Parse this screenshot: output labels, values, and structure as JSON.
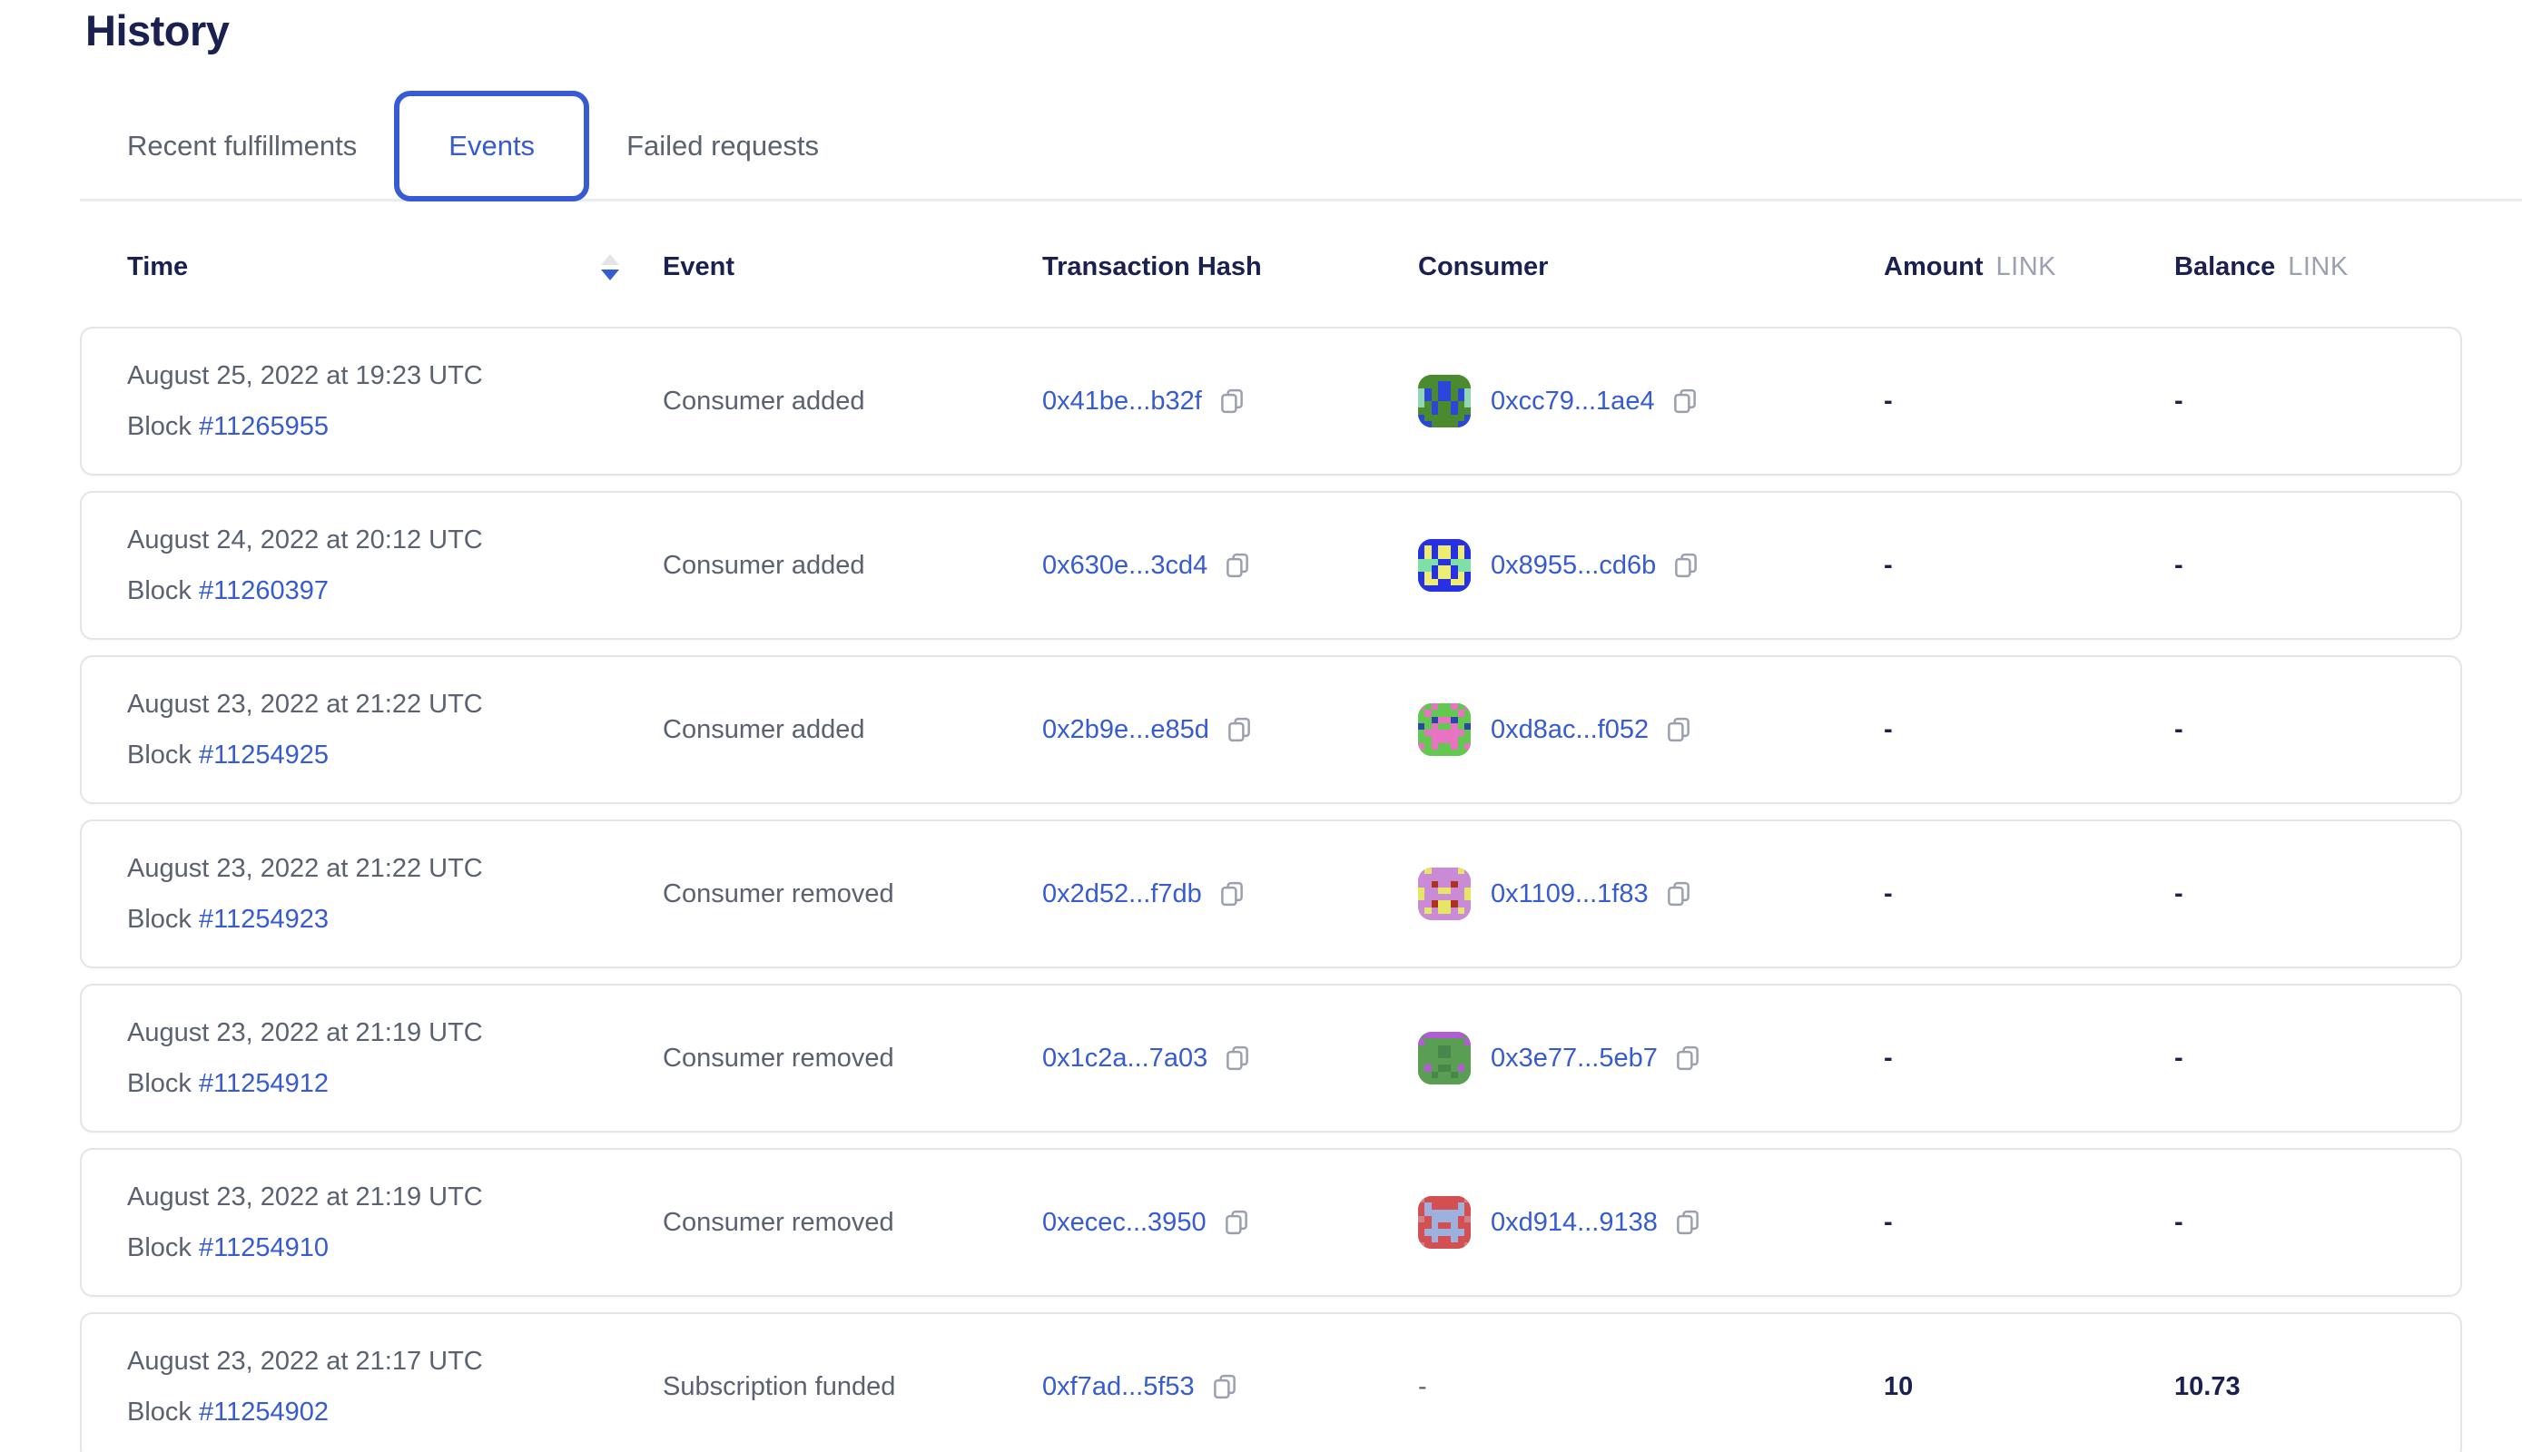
{
  "page": {
    "title": "History"
  },
  "tabs": [
    {
      "label": "Recent fulfillments",
      "active": false
    },
    {
      "label": "Events",
      "active": true
    },
    {
      "label": "Failed requests",
      "active": false
    }
  ],
  "table": {
    "columns": {
      "time": "Time",
      "event": "Event",
      "tx": "Transaction Hash",
      "consumer": "Consumer",
      "amount": "Amount",
      "balance": "Balance"
    },
    "unit": "LINK",
    "sort": {
      "column": "Time",
      "direction": "descending"
    },
    "rows": [
      {
        "date": "August 25, 2022 at 19:23 UTC",
        "block_label": "Block",
        "block": "#11265955",
        "event": "Consumer added",
        "tx": "0x41be...b32f",
        "consumer": "0xcc79...1ae4",
        "amount": "-",
        "balance": "-",
        "icon": {
          "colors": [
            "#4C8A2F",
            "#2B46D9",
            "#8FD8B1"
          ],
          "pattern": [
            "00000000",
            "00011000",
            "21011012",
            "21011012",
            "20100102",
            "00100100",
            "10000001",
            "11000011"
          ]
        }
      },
      {
        "date": "August 24, 2022 at 20:12 UTC",
        "block_label": "Block",
        "block": "#11260397",
        "event": "Consumer added",
        "tx": "0x630e...3cd4",
        "consumer": "0x8955...cd6b",
        "amount": "-",
        "balance": "-",
        "icon": {
          "colors": [
            "#2531E3",
            "#EDEE71",
            "#7FE0A7"
          ],
          "pattern": [
            "00000000",
            "01011010",
            "01011010",
            "22200222",
            "22011022",
            "01011010",
            "01100110",
            "00000000"
          ]
        }
      },
      {
        "date": "August 23, 2022 at 21:22 UTC",
        "block_label": "Block",
        "block": "#11254925",
        "event": "Consumer added",
        "tx": "0x2b9e...e85d",
        "consumer": "0xd8ac...f052",
        "amount": "-",
        "balance": "-",
        "icon": {
          "colors": [
            "#63C84F",
            "#E873C3",
            "#2847A8"
          ],
          "pattern": [
            "10100101",
            "01000010",
            "00211200",
            "20100102",
            "01111110",
            "00111100",
            "10100101",
            "00000000"
          ]
        }
      },
      {
        "date": "August 23, 2022 at 21:22 UTC",
        "block_label": "Block",
        "block": "#11254923",
        "event": "Consumer removed",
        "tx": "0x2d52...f7db",
        "consumer": "0x1109...1f83",
        "amount": "-",
        "balance": "-",
        "icon": {
          "colors": [
            "#C98BD6",
            "#E5E566",
            "#B03120"
          ],
          "pattern": [
            "01000010",
            "00000000",
            "00200200",
            "10011001",
            "10000001",
            "00211200",
            "01011010",
            "00000000"
          ]
        }
      },
      {
        "date": "August 23, 2022 at 21:19 UTC",
        "block_label": "Block",
        "block": "#11254912",
        "event": "Consumer removed",
        "tx": "0x1c2a...7a03",
        "consumer": "0x3e77...5eb7",
        "amount": "-",
        "balance": "-",
        "icon": {
          "colors": [
            "#5A9E53",
            "#47884A",
            "#B35BD4"
          ],
          "pattern": [
            "02222220",
            "20000002",
            "00011000",
            "00011000",
            "00000000",
            "02011020",
            "00100100",
            "00000000"
          ]
        }
      },
      {
        "date": "August 23, 2022 at 21:19 UTC",
        "block_label": "Block",
        "block": "#11254910",
        "event": "Consumer removed",
        "tx": "0xecec...3950",
        "consumer": "0xd914...9138",
        "amount": "-",
        "balance": "-",
        "icon": {
          "colors": [
            "#D44F52",
            "#9DB0DE",
            "#CE8289"
          ],
          "pattern": [
            "20000002",
            "01000010",
            "01111110",
            "20111102",
            "00100100",
            "01111110",
            "00100100",
            "20000002"
          ]
        }
      },
      {
        "date": "August 23, 2022 at 21:17 UTC",
        "block_label": "Block",
        "block": "#11254902",
        "event": "Subscription funded",
        "tx": "0xf7ad...5f53",
        "consumer": "-",
        "amount": "10",
        "balance": "10.73",
        "icon": null
      }
    ]
  },
  "icons": {
    "copy": "copy-icon",
    "sort": "sort-arrows-icon",
    "identicon": "consumer-identicon"
  },
  "ui_colors": {
    "accent_blue": "#375BD2",
    "heading_navy": "#1A2150",
    "text_gray": "#5A6170",
    "unit_gray": "#9BA1B0",
    "sort_inactive": "#E3E5EB",
    "card_border": "#E4E5EA",
    "divider": "#ECECEF"
  }
}
